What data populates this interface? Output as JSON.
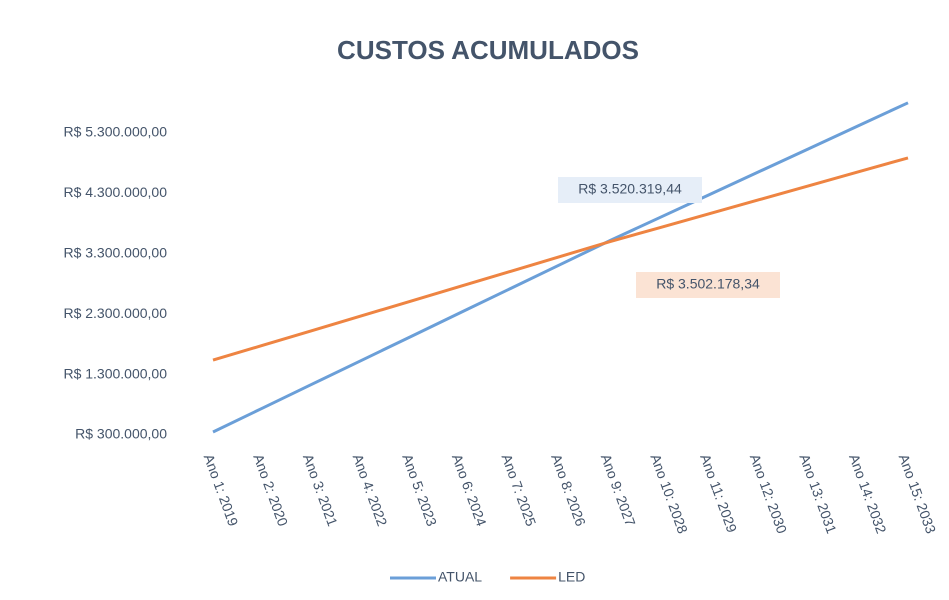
{
  "chart_data": {
    "type": "line",
    "title": "CUSTOS ACUMULADOS",
    "categories": [
      "Ano 1: 2019",
      "Ano 2: 2020",
      "Ano 3: 2021",
      "Ano 4: 2022",
      "Ano 5: 2023",
      "Ano 6: 2024",
      "Ano 7: 2025",
      "Ano 8: 2026",
      "Ano 9: 2027",
      "Ano 10: 2028",
      "Ano 11: 2029",
      "Ano 12: 2030",
      "Ano 13: 2031",
      "Ano 14: 2032",
      "Ano 15: 2033"
    ],
    "series": [
      {
        "name": "ATUAL",
        "color": "#6b9fd8",
        "values": [
          350000,
          746000,
          1143000,
          1539000,
          1935000,
          2332000,
          2728000,
          3124000,
          3520319.44,
          3900000,
          4280000,
          4660000,
          5040000,
          5420000,
          5800000
        ],
        "value_labels": [
          null,
          null,
          null,
          null,
          null,
          null,
          null,
          null,
          "R$ 3.520.319,44",
          null,
          null,
          null,
          null,
          null,
          null
        ]
      },
      {
        "name": "LED",
        "color": "#ee8442",
        "values": [
          1540000,
          1785000,
          2030000,
          2275000,
          2520000,
          2766000,
          3011000,
          3257000,
          3502178.34,
          3733000,
          3964000,
          4195000,
          4426000,
          4657000,
          4888000
        ],
        "value_labels": [
          null,
          null,
          null,
          null,
          null,
          null,
          null,
          null,
          "R$ 3.502.178,34",
          null,
          null,
          null,
          null,
          null,
          null
        ]
      }
    ],
    "ylim": [
      300000,
      5300000
    ],
    "yticks": [
      {
        "value": 300000,
        "label": "R$ 300.000,00"
      },
      {
        "value": 1300000,
        "label": "R$ 1.300.000,00"
      },
      {
        "value": 2300000,
        "label": "R$ 2.300.000,00"
      },
      {
        "value": 3300000,
        "label": "R$ 3.300.000,00"
      },
      {
        "value": 4300000,
        "label": "R$ 4.300.000,00"
      },
      {
        "value": 5300000,
        "label": "R$ 5.300.000,00"
      }
    ],
    "grid": false,
    "legend": "bottom"
  }
}
